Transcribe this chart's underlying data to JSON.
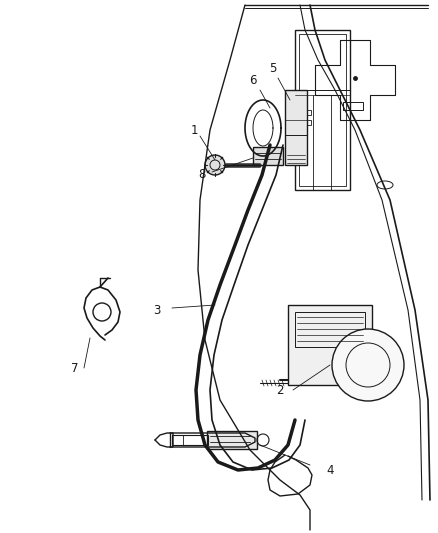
{
  "background_color": "#ffffff",
  "line_color": "#1a1a1a",
  "label_color": "#1a1a1a",
  "fig_width": 4.38,
  "fig_height": 5.33,
  "dpi": 100
}
